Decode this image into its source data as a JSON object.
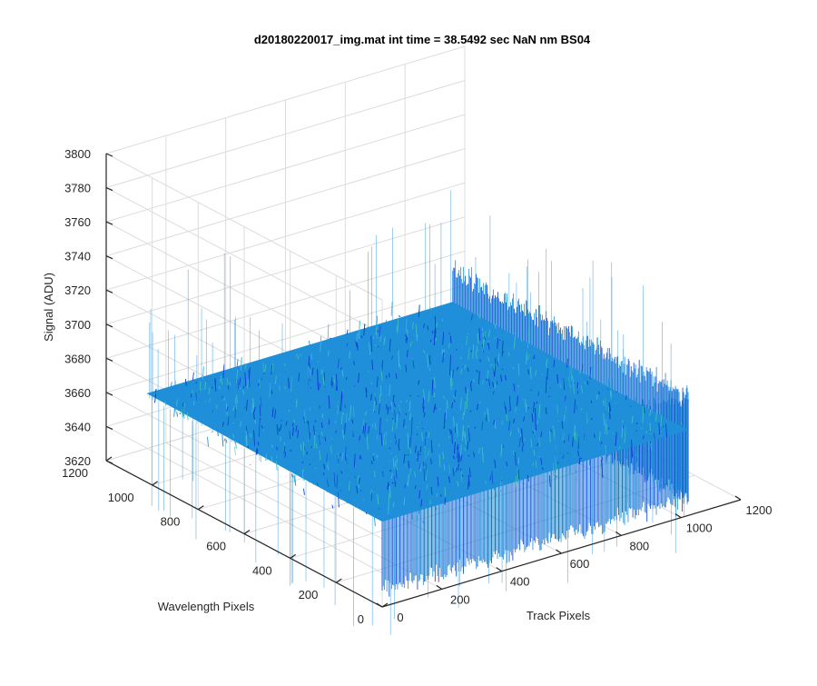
{
  "chart_data": {
    "type": "surface",
    "title": "d20180220017_img.mat int time = 38.5492 sec  NaN nm BS04",
    "xlabel": "Track Pixels",
    "ylabel": "Wavelength Pixels",
    "zlabel": "Signal (ADU)",
    "xlim": [
      0,
      1200
    ],
    "ylim": [
      0,
      1200
    ],
    "zlim": [
      3620,
      3800
    ],
    "x_ticks": [
      "0",
      "200",
      "400",
      "600",
      "800",
      "1000",
      "1200"
    ],
    "y_ticks": [
      "0",
      "200",
      "400",
      "600",
      "800",
      "1000",
      "1200"
    ],
    "z_ticks": [
      "3620",
      "3640",
      "3660",
      "3680",
      "3700",
      "3720",
      "3740",
      "3760",
      "3780",
      "3800"
    ],
    "data_extent": {
      "x": [
        0,
        1024
      ],
      "y": [
        0,
        1024
      ]
    },
    "surface": {
      "mean": 3660,
      "noise_band": [
        3630,
        3690
      ],
      "spike_max": 3745,
      "spike_min": 3622
    },
    "grid": true,
    "colors": {
      "surface_low": "#0a3fd0",
      "surface_mid": "#1e8fd8",
      "surface_high": "#3ec0c6",
      "axis": "#262626",
      "grid": "#dcdcdc"
    }
  }
}
